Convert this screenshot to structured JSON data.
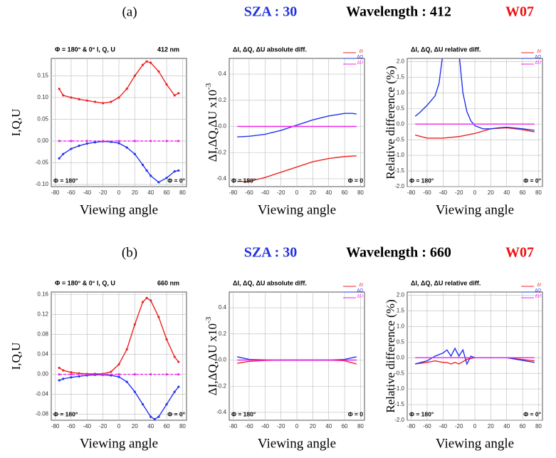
{
  "rows": [
    {
      "label": "(a)",
      "sza": "SZA : 30",
      "wavelength": "Wavelength : 412",
      "code": "W07"
    },
    {
      "label": "(b)",
      "sza": "SZA : 30",
      "wavelength": "Wavelength : 660",
      "code": "W07"
    }
  ],
  "chart_data": [
    {
      "type": "line",
      "title": "Φ = 180° & 0°   I, Q, U",
      "title_right": "412 nm",
      "xlabel": "Viewing angle",
      "ylabel": "I,Q,U",
      "annotations": [
        "Φ = 180°",
        "Φ = 0°"
      ],
      "xlim": [
        -85,
        85
      ],
      "xticks": [
        -80,
        -60,
        -40,
        -20,
        0,
        20,
        40,
        60,
        80
      ],
      "ylim": [
        -0.105,
        0.19
      ],
      "yticks": [
        {
          "value": -0.1,
          "label": "-0.10"
        },
        {
          "value": -0.05,
          "label": "-0.05"
        },
        {
          "value": 0,
          "label": "0.00"
        },
        {
          "value": 0.05,
          "label": "0.05"
        },
        {
          "value": 0.1,
          "label": "0.10"
        },
        {
          "value": 0.15,
          "label": "0.15"
        }
      ],
      "grid": true,
      "markers": true,
      "series": [
        {
          "color": "#ee2222",
          "x": [
            -75,
            -70,
            -60,
            -50,
            -40,
            -30,
            -20,
            -10,
            0,
            10,
            20,
            30,
            35,
            40,
            50,
            60,
            70,
            75
          ],
          "values": [
            0.12,
            0.105,
            0.1,
            0.096,
            0.093,
            0.09,
            0.087,
            0.09,
            0.1,
            0.12,
            0.15,
            0.175,
            0.183,
            0.18,
            0.16,
            0.13,
            0.105,
            0.11
          ]
        },
        {
          "color": "#2233ee",
          "x": [
            -75,
            -70,
            -60,
            -50,
            -40,
            -30,
            -20,
            -10,
            0,
            10,
            20,
            30,
            35,
            40,
            50,
            60,
            70,
            75
          ],
          "values": [
            -0.04,
            -0.03,
            -0.018,
            -0.011,
            -0.006,
            -0.003,
            -0.001,
            -0.002,
            -0.005,
            -0.015,
            -0.03,
            -0.055,
            -0.068,
            -0.08,
            -0.095,
            -0.085,
            -0.07,
            -0.068
          ]
        },
        {
          "color": "#ee22ee",
          "x": [
            -75,
            -60,
            -40,
            -20,
            0,
            20,
            40,
            60,
            75
          ],
          "values": [
            0,
            0,
            0,
            0,
            0,
            0,
            0,
            0,
            0
          ]
        }
      ]
    },
    {
      "type": "line",
      "title": "ΔI, ΔQ, ΔU absolute diff.",
      "xlabel": "Viewing angle",
      "ylabel": "ΔI,ΔQ,ΔU x10",
      "ylabel_exponent": "-3",
      "annotations": [
        "Φ = 180°",
        "Φ = 0"
      ],
      "xlim": [
        -85,
        85
      ],
      "xticks": [
        -80,
        -60,
        -40,
        -20,
        0,
        20,
        40,
        60,
        80
      ],
      "ylim": [
        -0.46,
        0.52
      ],
      "yticks": [
        -0.4,
        -0.2,
        {
          "value": 0,
          "label": "-0.0"
        },
        0.2,
        0.4
      ],
      "grid": true,
      "legend": "upper right",
      "series": [
        {
          "name": "ΔI",
          "color": "#ee2222",
          "x": [
            -75,
            -60,
            -40,
            -20,
            0,
            20,
            40,
            60,
            75
          ],
          "values": [
            -0.42,
            -0.42,
            -0.39,
            -0.35,
            -0.31,
            -0.27,
            -0.245,
            -0.23,
            -0.225
          ]
        },
        {
          "name": "ΔQ",
          "color": "#2233ee",
          "x": [
            -75,
            -60,
            -40,
            -20,
            0,
            20,
            40,
            60,
            70,
            75
          ],
          "values": [
            -0.08,
            -0.075,
            -0.06,
            -0.03,
            0.01,
            0.05,
            0.08,
            0.1,
            0.1,
            0.095
          ]
        },
        {
          "name": "ΔU",
          "color": "#ee22ee",
          "x": [
            -75,
            -60,
            -40,
            -20,
            0,
            20,
            40,
            60,
            75
          ],
          "values": [
            0,
            0,
            0,
            0,
            0,
            0,
            0,
            0,
            0
          ]
        }
      ]
    },
    {
      "type": "line",
      "title": "ΔI, ΔQ, ΔU relative diff.",
      "xlabel": "Viewing angle",
      "ylabel": "Relative difference (%)",
      "annotations": [
        "Φ = 180°",
        "Φ = 0°"
      ],
      "xlim": [
        -85,
        85
      ],
      "xticks": [
        -80,
        -60,
        -40,
        -20,
        0,
        20,
        40,
        60,
        80
      ],
      "ylim": [
        -2.0,
        2.1
      ],
      "yticks": [
        {
          "value": -2,
          "label": "-2.0"
        },
        -1.5,
        {
          "value": -1,
          "label": "-1.0"
        },
        -0.5,
        {
          "value": 0,
          "label": "0.0"
        },
        0.5,
        {
          "value": 1,
          "label": "1.0"
        },
        1.5,
        {
          "value": 2,
          "label": "2.0"
        }
      ],
      "grid": true,
      "legend": "upper right",
      "series": [
        {
          "name": "ΔI",
          "color": "#ee2222",
          "x": [
            -75,
            -60,
            -40,
            -20,
            0,
            20,
            40,
            60,
            75
          ],
          "values": [
            -0.35,
            -0.45,
            -0.45,
            -0.4,
            -0.3,
            -0.15,
            -0.12,
            -0.18,
            -0.25
          ]
        },
        {
          "name": "ΔQ",
          "color": "#2233ee",
          "x": [
            -75,
            -70,
            -60,
            -50,
            -45,
            -40,
            -30,
            -20,
            -15,
            -10,
            -5,
            0,
            10,
            20,
            30,
            40,
            60,
            75
          ],
          "values": [
            0.25,
            0.35,
            0.6,
            0.9,
            1.3,
            2.3,
            null,
            2.3,
            1.0,
            0.4,
            0.1,
            -0.05,
            -0.15,
            -0.15,
            -0.12,
            -0.1,
            -0.15,
            -0.2
          ]
        },
        {
          "name": "ΔU",
          "color": "#ee22ee",
          "x": [
            -75,
            -60,
            -40,
            -20,
            0,
            20,
            40,
            60,
            75
          ],
          "values": [
            0,
            0,
            0,
            0,
            0,
            0,
            0,
            0,
            0
          ]
        }
      ]
    },
    {
      "type": "line",
      "title": "Φ = 180° & 0°   I, Q, U",
      "title_right": "660 nm",
      "xlabel": "Viewing angle",
      "ylabel": "I,Q,U",
      "annotations": [
        "Φ = 180°",
        "Φ = 0°"
      ],
      "xlim": [
        -85,
        85
      ],
      "xticks": [
        -80,
        -60,
        -40,
        -20,
        0,
        20,
        40,
        60,
        80
      ],
      "ylim": [
        -0.092,
        0.165
      ],
      "yticks": [
        {
          "value": -0.08,
          "label": "-0.08"
        },
        {
          "value": -0.04,
          "label": "-0.04"
        },
        {
          "value": 0,
          "label": "0.00"
        },
        {
          "value": 0.04,
          "label": "0.04"
        },
        {
          "value": 0.08,
          "label": "0.08"
        },
        {
          "value": 0.12,
          "label": "0.12"
        },
        {
          "value": 0.16,
          "label": "0.16"
        }
      ],
      "grid": true,
      "markers": true,
      "series": [
        {
          "color": "#ee2222",
          "x": [
            -75,
            -70,
            -60,
            -50,
            -40,
            -30,
            -20,
            -10,
            0,
            10,
            20,
            30,
            35,
            40,
            50,
            60,
            70,
            75
          ],
          "values": [
            0.013,
            0.008,
            0.004,
            0.002,
            0.001,
            0.001,
            0.001,
            0.005,
            0.02,
            0.05,
            0.1,
            0.145,
            0.153,
            0.148,
            0.115,
            0.07,
            0.035,
            0.025
          ]
        },
        {
          "color": "#2233ee",
          "x": [
            -75,
            -70,
            -60,
            -50,
            -40,
            -30,
            -20,
            -10,
            0,
            10,
            20,
            30,
            40,
            45,
            50,
            60,
            70,
            75
          ],
          "values": [
            -0.012,
            -0.009,
            -0.006,
            -0.004,
            -0.002,
            -0.001,
            -0.001,
            -0.002,
            -0.005,
            -0.015,
            -0.035,
            -0.06,
            -0.085,
            -0.09,
            -0.085,
            -0.06,
            -0.035,
            -0.025
          ]
        },
        {
          "color": "#ee22ee",
          "x": [
            -75,
            -60,
            -40,
            -20,
            0,
            20,
            40,
            60,
            75
          ],
          "values": [
            0,
            0,
            0,
            0,
            0,
            0,
            0,
            0,
            0
          ]
        }
      ]
    },
    {
      "type": "line",
      "title": "ΔI, ΔQ, ΔU absolute diff.",
      "xlabel": "Viewing angle",
      "ylabel": "ΔI,ΔQ,ΔU x10",
      "ylabel_exponent": "-3",
      "annotations": [
        "Φ = 180°",
        "Φ = 0"
      ],
      "xlim": [
        -85,
        85
      ],
      "xticks": [
        -80,
        -60,
        -40,
        -20,
        0,
        20,
        40,
        60,
        80
      ],
      "ylim": [
        -0.46,
        0.52
      ],
      "yticks": [
        -0.4,
        -0.2,
        {
          "value": 0,
          "label": "-0.0"
        },
        0.2,
        0.4
      ],
      "grid": true,
      "legend": "upper right",
      "series": [
        {
          "name": "ΔI",
          "color": "#ee2222",
          "x": [
            -75,
            -60,
            -40,
            -20,
            0,
            20,
            40,
            60,
            75
          ],
          "values": [
            -0.025,
            -0.01,
            -0.003,
            0,
            0,
            0,
            0,
            -0.005,
            -0.03
          ]
        },
        {
          "name": "ΔQ",
          "color": "#2233ee",
          "x": [
            -75,
            -60,
            -40,
            -20,
            0,
            20,
            40,
            60,
            75
          ],
          "values": [
            0.025,
            0.005,
            0.002,
            0,
            0,
            0,
            0,
            0.005,
            0.025
          ]
        },
        {
          "name": "ΔU",
          "color": "#ee22ee",
          "x": [
            -75,
            -60,
            -40,
            -20,
            0,
            20,
            40,
            60,
            75
          ],
          "values": [
            0,
            0,
            0,
            0,
            0,
            0,
            0,
            0,
            0
          ]
        }
      ]
    },
    {
      "type": "line",
      "title": "ΔI, ΔQ, ΔU relative diff.",
      "xlabel": "Viewing angle",
      "ylabel": "Relative difference (%)",
      "annotations": [
        "Φ = 180°",
        "Φ = 0°"
      ],
      "xlim": [
        -85,
        85
      ],
      "xticks": [
        -80,
        -60,
        -40,
        -20,
        0,
        20,
        40,
        60,
        80
      ],
      "ylim": [
        -2.0,
        2.1
      ],
      "yticks": [
        {
          "value": -2,
          "label": "-2.0"
        },
        -1.5,
        {
          "value": -1,
          "label": "-1.0"
        },
        -0.5,
        {
          "value": 0,
          "label": "0.0"
        },
        0.5,
        {
          "value": 1,
          "label": "1.0"
        },
        1.5,
        {
          "value": 2,
          "label": "2.0"
        }
      ],
      "grid": true,
      "legend": "upper right",
      "series": [
        {
          "name": "ΔI",
          "color": "#ee2222",
          "x": [
            -75,
            -60,
            -50,
            -40,
            -35,
            -30,
            -25,
            -20,
            -10,
            0,
            40,
            75
          ],
          "values": [
            -0.2,
            -0.15,
            -0.1,
            -0.15,
            -0.15,
            -0.2,
            -0.15,
            -0.2,
            -0.05,
            0,
            0,
            -0.1
          ]
        },
        {
          "name": "ΔQ",
          "color": "#2233ee",
          "x": [
            -75,
            -60,
            -50,
            -45,
            -40,
            -35,
            -30,
            -25,
            -20,
            -15,
            -10,
            -5,
            0,
            40,
            75
          ],
          "values": [
            -0.2,
            -0.1,
            0.05,
            0.1,
            0.15,
            0.25,
            0.05,
            0.3,
            0.05,
            0.25,
            -0.2,
            0.05,
            0,
            0,
            -0.15
          ]
        },
        {
          "name": "ΔU",
          "color": "#ee22ee",
          "x": [
            -75,
            -60,
            -40,
            -20,
            0,
            20,
            40,
            60,
            75
          ],
          "values": [
            0,
            0,
            0,
            0,
            0,
            0,
            0,
            0,
            0
          ]
        }
      ]
    }
  ]
}
